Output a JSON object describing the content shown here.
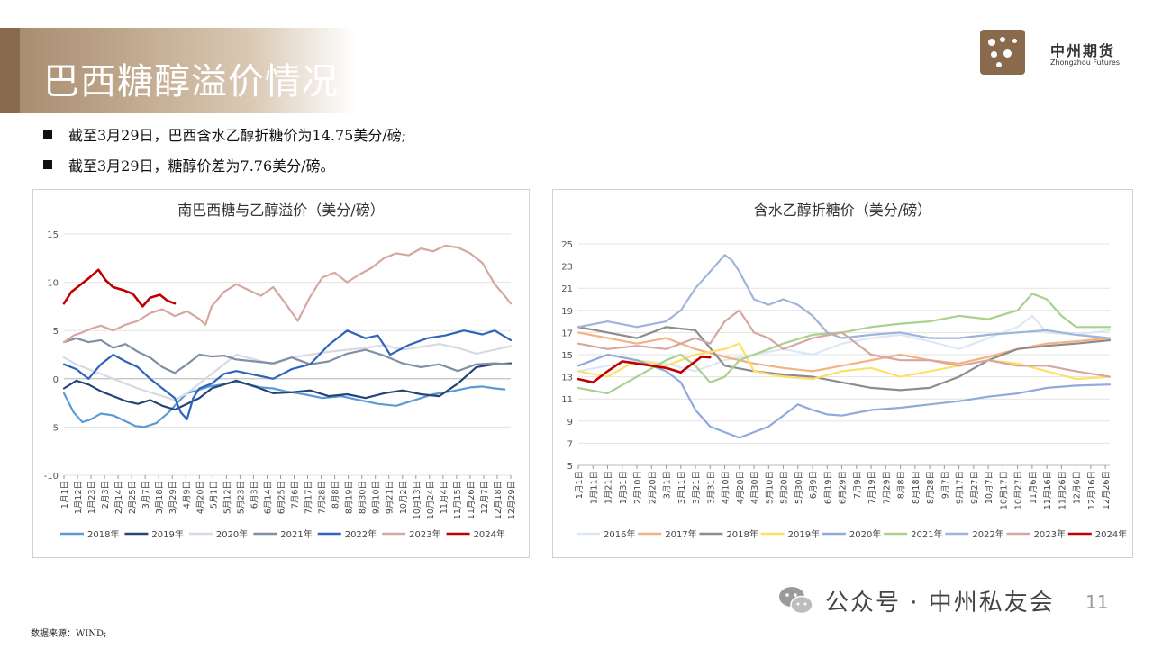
{
  "header": {
    "title": "巴西糖醇溢价情况",
    "logo_cn": "中州期货",
    "logo_en": "Zhongzhou Futures"
  },
  "bullets": [
    "截至3月29日，巴西含水乙醇折糖价为14.75美分/磅;",
    "截至3月29日，糖醇价差为7.76美分/磅。"
  ],
  "footer": {
    "source": "数据来源：WIND;",
    "watermark": "公众号 · 中州私友会",
    "page": "11"
  },
  "chart_data": [
    {
      "type": "line",
      "title": "南巴西糖与乙醇溢价（美分/磅）",
      "ylim": [
        -10,
        15
      ],
      "yticks": [
        15,
        10,
        5,
        0,
        -5,
        -10
      ],
      "x_labels": [
        "1月1日",
        "1月12日",
        "1月23日",
        "2月3日",
        "2月14日",
        "2月25日",
        "3月7日",
        "3月18日",
        "3月29日",
        "4月9日",
        "4月20日",
        "5月1日",
        "5月12日",
        "5月23日",
        "6月3日",
        "6月14日",
        "6月25日",
        "7月6日",
        "7月17日",
        "7月28日",
        "8月8日",
        "8月19日",
        "8月30日",
        "9月10日",
        "9月21日",
        "10月2日",
        "10月13日",
        "10月24日",
        "11月4日",
        "11月15日",
        "11月26日",
        "12月7日",
        "12月18日",
        "12月29日"
      ],
      "x_positions": [
        0,
        11,
        22,
        33,
        44,
        55,
        66,
        77,
        88,
        99,
        110,
        121,
        132,
        143,
        154,
        165,
        176,
        187,
        198,
        209,
        220,
        231,
        242,
        253,
        264,
        275,
        286,
        297,
        308,
        319,
        330,
        341,
        352,
        363
      ],
      "day_range": [
        0,
        363
      ],
      "series": [
        {
          "name": "2018年",
          "color": "#5b9bd5",
          "x": [
            0,
            8,
            15,
            22,
            30,
            40,
            50,
            58,
            65,
            75,
            85,
            92,
            100,
            108,
            118,
            128,
            140,
            150,
            160,
            170,
            180,
            195,
            210,
            225,
            240,
            255,
            270,
            285,
            300,
            315,
            330,
            340,
            350,
            358
          ],
          "y": [
            -1.5,
            -3.5,
            -4.5,
            -4.2,
            -3.6,
            -3.8,
            -4.4,
            -4.9,
            -5.0,
            -4.6,
            -3.5,
            -2.5,
            -1.5,
            -1.2,
            -0.8,
            -0.6,
            -0.3,
            -0.6,
            -0.9,
            -1.0,
            -1.3,
            -1.6,
            -2.0,
            -1.8,
            -2.2,
            -2.6,
            -2.8,
            -2.2,
            -1.6,
            -1.3,
            -0.9,
            -0.8,
            -1.0,
            -1.1
          ]
        },
        {
          "name": "2019年",
          "color": "#264478",
          "x": [
            0,
            10,
            20,
            30,
            40,
            50,
            60,
            70,
            80,
            90,
            100,
            110,
            120,
            130,
            140,
            155,
            170,
            185,
            200,
            215,
            230,
            245,
            260,
            275,
            290,
            305,
            320,
            335,
            350,
            363
          ],
          "y": [
            -1.0,
            -0.2,
            -0.6,
            -1.3,
            -1.8,
            -2.3,
            -2.6,
            -2.2,
            -2.8,
            -3.2,
            -2.6,
            -2.0,
            -1.0,
            -0.6,
            -0.2,
            -0.8,
            -1.5,
            -1.4,
            -1.2,
            -1.8,
            -1.6,
            -2.0,
            -1.5,
            -1.2,
            -1.6,
            -1.8,
            -0.5,
            1.2,
            1.5,
            1.6
          ]
        },
        {
          "name": "2020年",
          "color": "#d9d9e6",
          "x": [
            0,
            10,
            20,
            30,
            40,
            50,
            60,
            70,
            80,
            90,
            100,
            110,
            120,
            130,
            140,
            155,
            170,
            185,
            200,
            215,
            230,
            245,
            260,
            275,
            290,
            305,
            320,
            335,
            350,
            363
          ],
          "y": [
            2.2,
            1.5,
            1.0,
            0.5,
            0.0,
            -0.5,
            -1.0,
            -1.4,
            -1.8,
            -2.2,
            -1.5,
            -0.5,
            0.5,
            1.5,
            2.5,
            2.0,
            1.5,
            2.2,
            2.5,
            2.8,
            3.0,
            3.2,
            3.5,
            3.0,
            3.3,
            3.6,
            3.2,
            2.6,
            3.0,
            3.4
          ]
        },
        {
          "name": "2021年",
          "color": "#7f8fa6",
          "x": [
            0,
            10,
            20,
            30,
            40,
            50,
            60,
            70,
            80,
            90,
            100,
            110,
            120,
            130,
            140,
            155,
            170,
            185,
            200,
            215,
            230,
            245,
            260,
            275,
            290,
            305,
            320,
            335,
            350,
            363
          ],
          "y": [
            3.8,
            4.2,
            3.8,
            4.0,
            3.2,
            3.6,
            2.8,
            2.2,
            1.2,
            0.6,
            1.5,
            2.5,
            2.3,
            2.4,
            2.0,
            1.8,
            1.6,
            2.2,
            1.5,
            1.8,
            2.6,
            3.0,
            2.4,
            1.6,
            1.2,
            1.5,
            0.8,
            1.5,
            1.6,
            1.5
          ]
        },
        {
          "name": "2022年",
          "color": "#2e64b9",
          "x": [
            0,
            10,
            20,
            30,
            40,
            50,
            60,
            70,
            80,
            90,
            95,
            100,
            105,
            110,
            120,
            130,
            140,
            155,
            170,
            185,
            200,
            215,
            230,
            245,
            255,
            265,
            280,
            295,
            310,
            325,
            340,
            350,
            363
          ],
          "y": [
            1.5,
            1.0,
            0.0,
            1.5,
            2.5,
            1.8,
            1.2,
            0.0,
            -1.0,
            -2.0,
            -3.5,
            -4.2,
            -2.0,
            -1.0,
            -0.5,
            0.5,
            0.8,
            0.4,
            0.0,
            1.0,
            1.5,
            3.5,
            5.0,
            4.2,
            4.5,
            2.5,
            3.5,
            4.2,
            4.5,
            5.0,
            4.6,
            5.0,
            4.0
          ]
        },
        {
          "name": "2023年",
          "color": "#d6a7a0",
          "x": [
            0,
            8,
            15,
            22,
            30,
            40,
            50,
            60,
            70,
            80,
            90,
            100,
            110,
            115,
            120,
            130,
            140,
            150,
            160,
            170,
            180,
            190,
            200,
            210,
            220,
            230,
            240,
            250,
            260,
            270,
            280,
            290,
            300,
            310,
            320,
            330,
            340,
            350,
            358,
            363
          ],
          "y": [
            3.8,
            4.5,
            4.8,
            5.2,
            5.5,
            5.0,
            5.6,
            6.0,
            6.8,
            7.2,
            6.5,
            7.0,
            6.2,
            5.6,
            7.5,
            9.0,
            9.8,
            9.2,
            8.6,
            9.5,
            7.8,
            6.0,
            8.5,
            10.5,
            11.0,
            10.0,
            10.8,
            11.5,
            12.5,
            13.0,
            12.8,
            13.5,
            13.2,
            13.8,
            13.6,
            13.0,
            12.0,
            9.8,
            8.6,
            7.8
          ]
        },
        {
          "name": "2024年",
          "color": "#c00000",
          "x": [
            0,
            6,
            12,
            20,
            28,
            34,
            40,
            48,
            56,
            64,
            70,
            78,
            84,
            90
          ],
          "y": [
            7.8,
            9.0,
            9.6,
            10.4,
            11.3,
            10.2,
            9.5,
            9.2,
            8.8,
            7.5,
            8.4,
            8.7,
            8.1,
            7.8
          ]
        }
      ]
    },
    {
      "type": "line",
      "title": "含水乙醇折糖价（美分/磅）",
      "ylim": [
        5,
        25
      ],
      "yticks": [
        25,
        23,
        21,
        19,
        17,
        15,
        13,
        11,
        9,
        7,
        5
      ],
      "x_labels": [
        "1月1日",
        "1月11日",
        "1月21日",
        "1月31日",
        "2月10日",
        "2月20日",
        "3月1日",
        "3月11日",
        "3月21日",
        "3月31日",
        "4月10日",
        "4月20日",
        "4月30日",
        "5月10日",
        "5月20日",
        "5月30日",
        "6月9日",
        "6月19日",
        "6月29日",
        "7月9日",
        "7月19日",
        "7月29日",
        "8月8日",
        "8月18日",
        "8月28日",
        "9月7日",
        "9月17日",
        "9月27日",
        "10月7日",
        "10月17日",
        "10月27日",
        "11月6日",
        "11月16日",
        "11月26日",
        "12月6日",
        "12月16日",
        "12月26日"
      ],
      "x_positions": [
        0,
        10,
        20,
        30,
        40,
        50,
        60,
        70,
        80,
        90,
        100,
        110,
        120,
        130,
        140,
        150,
        160,
        170,
        180,
        190,
        200,
        210,
        220,
        230,
        240,
        250,
        260,
        270,
        280,
        290,
        300,
        310,
        320,
        330,
        340,
        350,
        360
      ],
      "day_range": [
        0,
        363
      ],
      "series": [
        {
          "name": "2016年",
          "color": "#dde8f7",
          "x": [
            0,
            20,
            40,
            60,
            80,
            100,
            120,
            140,
            160,
            180,
            200,
            220,
            240,
            260,
            280,
            300,
            310,
            320,
            340,
            363
          ],
          "y": [
            13.5,
            14.0,
            14.5,
            14.2,
            13.5,
            14.5,
            15.0,
            15.5,
            15.0,
            16.0,
            16.5,
            16.8,
            16.2,
            15.5,
            16.5,
            17.5,
            18.5,
            17.0,
            16.8,
            17.2
          ]
        },
        {
          "name": "2017年",
          "color": "#f4b183",
          "x": [
            0,
            20,
            40,
            60,
            80,
            100,
            120,
            140,
            160,
            180,
            200,
            220,
            240,
            260,
            280,
            300,
            320,
            340,
            363
          ],
          "y": [
            17.0,
            16.5,
            16.0,
            16.5,
            15.5,
            14.8,
            14.2,
            13.8,
            13.5,
            14.0,
            14.5,
            15.0,
            14.5,
            14.2,
            14.8,
            15.5,
            16.0,
            16.2,
            16.5
          ]
        },
        {
          "name": "2018年",
          "color": "#8c8c8c",
          "x": [
            0,
            20,
            40,
            60,
            80,
            100,
            120,
            140,
            160,
            180,
            200,
            220,
            240,
            260,
            280,
            300,
            320,
            340,
            363
          ],
          "y": [
            17.5,
            17.0,
            16.5,
            17.5,
            17.2,
            14.0,
            13.5,
            13.2,
            13.0,
            12.5,
            12.0,
            11.8,
            12.0,
            13.0,
            14.5,
            15.5,
            15.8,
            16.0,
            16.3
          ]
        },
        {
          "name": "2019年",
          "color": "#ffe066",
          "x": [
            0,
            20,
            40,
            60,
            80,
            100,
            110,
            120,
            140,
            160,
            180,
            200,
            220,
            240,
            260,
            280,
            300,
            320,
            340,
            363
          ],
          "y": [
            13.5,
            13.0,
            14.5,
            14.0,
            15.0,
            15.5,
            16.0,
            13.5,
            13.0,
            12.8,
            13.5,
            13.8,
            13.0,
            13.5,
            14.0,
            14.5,
            14.2,
            13.5,
            12.8,
            13.0
          ]
        },
        {
          "name": "2020年",
          "color": "#8faadc",
          "x": [
            0,
            20,
            40,
            60,
            70,
            80,
            90,
            100,
            110,
            120,
            130,
            140,
            150,
            160,
            170,
            180,
            200,
            220,
            240,
            260,
            280,
            300,
            320,
            340,
            363
          ],
          "y": [
            14.0,
            15.0,
            14.5,
            13.5,
            12.5,
            10.0,
            8.5,
            8.0,
            7.5,
            8.0,
            8.5,
            9.5,
            10.5,
            10.0,
            9.6,
            9.5,
            10.0,
            10.2,
            10.5,
            10.8,
            11.2,
            11.5,
            12.0,
            12.2,
            12.3
          ]
        },
        {
          "name": "2021年",
          "color": "#a9d18e",
          "x": [
            0,
            20,
            40,
            60,
            70,
            80,
            90,
            100,
            110,
            120,
            140,
            160,
            180,
            200,
            220,
            240,
            260,
            280,
            300,
            310,
            320,
            330,
            340,
            363
          ],
          "y": [
            12.0,
            11.5,
            13.0,
            14.5,
            15.0,
            14.0,
            12.5,
            13.0,
            14.5,
            15.0,
            16.0,
            16.8,
            17.0,
            17.5,
            17.8,
            18.0,
            18.5,
            18.2,
            19.0,
            20.5,
            20.0,
            18.5,
            17.5,
            17.5
          ]
        },
        {
          "name": "2022年",
          "color": "#9fb4d9",
          "x": [
            0,
            20,
            40,
            60,
            70,
            80,
            90,
            100,
            105,
            110,
            120,
            130,
            140,
            150,
            160,
            170,
            180,
            200,
            220,
            240,
            260,
            280,
            300,
            320,
            340,
            363
          ],
          "y": [
            17.5,
            18.0,
            17.5,
            18.0,
            19.0,
            21.0,
            22.5,
            24.0,
            23.5,
            22.5,
            20.0,
            19.5,
            20.0,
            19.5,
            18.5,
            17.0,
            16.5,
            16.8,
            17.0,
            16.5,
            16.5,
            16.8,
            17.0,
            17.2,
            16.8,
            16.5
          ]
        },
        {
          "name": "2023年",
          "color": "#d6a7a0",
          "x": [
            0,
            20,
            40,
            60,
            80,
            90,
            100,
            110,
            120,
            130,
            140,
            150,
            160,
            180,
            200,
            220,
            240,
            260,
            280,
            300,
            320,
            340,
            363
          ],
          "y": [
            16.0,
            15.5,
            15.8,
            15.5,
            16.5,
            16.0,
            18.0,
            19.0,
            17.0,
            16.5,
            15.5,
            16.0,
            16.5,
            17.0,
            15.0,
            14.5,
            14.5,
            14.0,
            14.5,
            14.0,
            14.0,
            13.5,
            13.0
          ]
        },
        {
          "name": "2024年",
          "color": "#c00000",
          "x": [
            0,
            10,
            20,
            30,
            40,
            50,
            60,
            70,
            78,
            84,
            90
          ],
          "y": [
            12.8,
            12.5,
            13.5,
            14.4,
            14.2,
            14.0,
            13.8,
            13.4,
            14.2,
            14.8,
            14.75
          ]
        }
      ]
    }
  ]
}
